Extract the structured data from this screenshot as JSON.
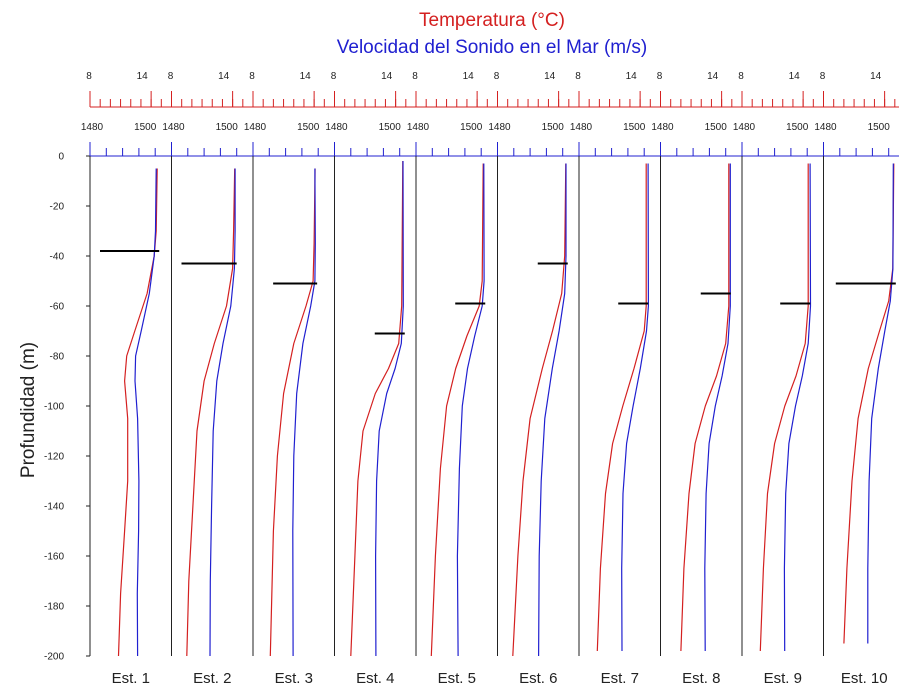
{
  "chart_data": {
    "type": "line",
    "title": "Temperatura (°C)",
    "subtitle": "Velocidad del Sonido en el Mar (m/s)",
    "ylabel": "Profundidad (m)",
    "ylim": [
      -200,
      0
    ],
    "yticks": [
      0,
      -20,
      -40,
      -60,
      -80,
      -100,
      -120,
      -140,
      -160,
      -180,
      -200
    ],
    "temp_axis": {
      "range": [
        8,
        16
      ],
      "tick_labels": [
        8,
        14
      ]
    },
    "vel_axis": {
      "range": [
        1480,
        1505
      ],
      "tick_labels": [
        1480,
        1500
      ]
    },
    "colors": {
      "temperature": "#d42020",
      "velocity": "#2020d0",
      "mixed_layer": "#000000",
      "axis": "#222222"
    },
    "stations": [
      {
        "name": "Est. 1",
        "mixed_layer_depth": -38,
        "temperature": [
          [
            -5,
            14.6
          ],
          [
            -30,
            14.5
          ],
          [
            -40,
            14.3
          ],
          [
            -55,
            13.6
          ],
          [
            -70,
            12.4
          ],
          [
            -80,
            11.6
          ],
          [
            -90,
            11.4
          ],
          [
            -105,
            11.7
          ],
          [
            -130,
            11.7
          ],
          [
            -150,
            11.4
          ],
          [
            -175,
            11.0
          ],
          [
            -200,
            10.8
          ]
        ],
        "velocity": [
          [
            -5,
            1500.3
          ],
          [
            -30,
            1500.1
          ],
          [
            -40,
            1499.7
          ],
          [
            -55,
            1498.2
          ],
          [
            -70,
            1495.7
          ],
          [
            -80,
            1494.0
          ],
          [
            -90,
            1493.8
          ],
          [
            -105,
            1494.6
          ],
          [
            -130,
            1495.0
          ],
          [
            -150,
            1494.9
          ],
          [
            -175,
            1494.5
          ],
          [
            -200,
            1494.6
          ]
        ]
      },
      {
        "name": "Est. 2",
        "mixed_layer_depth": -43,
        "temperature": [
          [
            -5,
            14.2
          ],
          [
            -30,
            14.1
          ],
          [
            -45,
            14.0
          ],
          [
            -60,
            13.4
          ],
          [
            -75,
            12.2
          ],
          [
            -90,
            11.2
          ],
          [
            -110,
            10.5
          ],
          [
            -140,
            10.1
          ],
          [
            -170,
            9.7
          ],
          [
            -200,
            9.5
          ]
        ],
        "velocity": [
          [
            -5,
            1499.5
          ],
          [
            -30,
            1499.5
          ],
          [
            -45,
            1499.3
          ],
          [
            -60,
            1498.2
          ],
          [
            -75,
            1495.8
          ],
          [
            -90,
            1493.9
          ],
          [
            -110,
            1492.8
          ],
          [
            -140,
            1492.3
          ],
          [
            -170,
            1491.9
          ],
          [
            -200,
            1491.8
          ]
        ]
      },
      {
        "name": "Est. 3",
        "mixed_layer_depth": -51,
        "temperature": [
          [
            -5,
            14.1
          ],
          [
            -35,
            14.0
          ],
          [
            -50,
            13.9
          ],
          [
            -60,
            13.2
          ],
          [
            -75,
            12.0
          ],
          [
            -95,
            11.0
          ],
          [
            -120,
            10.4
          ],
          [
            -150,
            10.0
          ],
          [
            -200,
            9.7
          ]
        ],
        "velocity": [
          [
            -5,
            1499.0
          ],
          [
            -35,
            1499.1
          ],
          [
            -50,
            1499.0
          ],
          [
            -60,
            1497.7
          ],
          [
            -75,
            1495.3
          ],
          [
            -95,
            1493.4
          ],
          [
            -120,
            1492.5
          ],
          [
            -150,
            1492.2
          ],
          [
            -200,
            1492.3
          ]
        ]
      },
      {
        "name": "Est. 4",
        "mixed_layer_depth": -71,
        "temperature": [
          [
            -2,
            14.7
          ],
          [
            -60,
            14.6
          ],
          [
            -75,
            14.3
          ],
          [
            -85,
            13.3
          ],
          [
            -95,
            12.0
          ],
          [
            -110,
            10.8
          ],
          [
            -130,
            10.3
          ],
          [
            -160,
            10.0
          ],
          [
            -200,
            9.6
          ]
        ],
        "velocity": [
          [
            -2,
            1501.0
          ],
          [
            -60,
            1501.1
          ],
          [
            -75,
            1500.5
          ],
          [
            -85,
            1498.6
          ],
          [
            -95,
            1496.0
          ],
          [
            -110,
            1493.7
          ],
          [
            -130,
            1492.9
          ],
          [
            -160,
            1492.6
          ],
          [
            -200,
            1492.7
          ]
        ]
      },
      {
        "name": "Est. 5",
        "mixed_layer_depth": -59,
        "temperature": [
          [
            -3,
            14.6
          ],
          [
            -50,
            14.5
          ],
          [
            -60,
            14.2
          ],
          [
            -72,
            13.0
          ],
          [
            -85,
            11.9
          ],
          [
            -100,
            11.0
          ],
          [
            -125,
            10.4
          ],
          [
            -160,
            9.9
          ],
          [
            -200,
            9.5
          ]
        ],
        "velocity": [
          [
            -3,
            1500.8
          ],
          [
            -50,
            1500.9
          ],
          [
            -60,
            1500.3
          ],
          [
            -72,
            1498.0
          ],
          [
            -85,
            1495.8
          ],
          [
            -100,
            1494.2
          ],
          [
            -125,
            1493.3
          ],
          [
            -160,
            1492.7
          ],
          [
            -200,
            1492.9
          ]
        ]
      },
      {
        "name": "Est. 6",
        "mixed_layer_depth": -43,
        "temperature": [
          [
            -3,
            14.7
          ],
          [
            -40,
            14.6
          ],
          [
            -55,
            14.3
          ],
          [
            -70,
            13.4
          ],
          [
            -85,
            12.4
          ],
          [
            -105,
            11.2
          ],
          [
            -130,
            10.5
          ],
          [
            -160,
            10.0
          ],
          [
            -200,
            9.5
          ]
        ],
        "velocity": [
          [
            -3,
            1501.0
          ],
          [
            -40,
            1501.0
          ],
          [
            -55,
            1500.6
          ],
          [
            -70,
            1498.9
          ],
          [
            -85,
            1496.8
          ],
          [
            -105,
            1494.5
          ],
          [
            -130,
            1493.4
          ],
          [
            -160,
            1492.8
          ],
          [
            -200,
            1492.6
          ]
        ]
      },
      {
        "name": "Est. 7",
        "mixed_layer_depth": -59,
        "temperature": [
          [
            -3,
            14.6
          ],
          [
            -60,
            14.6
          ],
          [
            -70,
            14.4
          ],
          [
            -85,
            13.4
          ],
          [
            -100,
            12.3
          ],
          [
            -115,
            11.3
          ],
          [
            -135,
            10.6
          ],
          [
            -165,
            10.1
          ],
          [
            -198,
            9.8
          ]
        ],
        "velocity": [
          [
            -3,
            1501.2
          ],
          [
            -60,
            1501.3
          ],
          [
            -70,
            1500.7
          ],
          [
            -85,
            1498.8
          ],
          [
            -100,
            1496.6
          ],
          [
            -115,
            1494.6
          ],
          [
            -135,
            1493.5
          ],
          [
            -165,
            1493.1
          ],
          [
            -198,
            1493.2
          ]
        ]
      },
      {
        "name": "Est. 8",
        "mixed_layer_depth": -55,
        "temperature": [
          [
            -3,
            14.7
          ],
          [
            -60,
            14.7
          ],
          [
            -75,
            14.4
          ],
          [
            -88,
            13.5
          ],
          [
            -100,
            12.4
          ],
          [
            -115,
            11.4
          ],
          [
            -135,
            10.8
          ],
          [
            -165,
            10.3
          ],
          [
            -198,
            10.0
          ]
        ],
        "velocity": [
          [
            -3,
            1501.4
          ],
          [
            -60,
            1501.4
          ],
          [
            -75,
            1500.7
          ],
          [
            -88,
            1498.9
          ],
          [
            -100,
            1496.8
          ],
          [
            -115,
            1494.9
          ],
          [
            -135,
            1494.0
          ],
          [
            -165,
            1493.6
          ],
          [
            -198,
            1493.7
          ]
        ]
      },
      {
        "name": "Est. 9",
        "mixed_layer_depth": -59,
        "temperature": [
          [
            -3,
            14.5
          ],
          [
            -60,
            14.5
          ],
          [
            -75,
            14.2
          ],
          [
            -88,
            13.3
          ],
          [
            -100,
            12.2
          ],
          [
            -115,
            11.2
          ],
          [
            -135,
            10.5
          ],
          [
            -165,
            10.1
          ],
          [
            -198,
            9.8
          ]
        ],
        "velocity": [
          [
            -3,
            1500.9
          ],
          [
            -60,
            1501.0
          ],
          [
            -75,
            1500.3
          ],
          [
            -88,
            1498.5
          ],
          [
            -100,
            1496.4
          ],
          [
            -115,
            1494.4
          ],
          [
            -135,
            1493.4
          ],
          [
            -165,
            1493.0
          ],
          [
            -198,
            1493.1
          ]
        ]
      },
      {
        "name": "Est. 10",
        "mixed_layer_depth": -51,
        "temperature": [
          [
            -3,
            14.9
          ],
          [
            -45,
            14.8
          ],
          [
            -58,
            14.4
          ],
          [
            -70,
            13.5
          ],
          [
            -85,
            12.4
          ],
          [
            -105,
            11.4
          ],
          [
            -130,
            10.8
          ],
          [
            -165,
            10.3
          ],
          [
            -195,
            10.0
          ]
        ],
        "velocity": [
          [
            -3,
            1501.4
          ],
          [
            -45,
            1501.3
          ],
          [
            -58,
            1500.5
          ],
          [
            -70,
            1498.8
          ],
          [
            -85,
            1496.8
          ],
          [
            -105,
            1494.8
          ],
          [
            -130,
            1494.0
          ],
          [
            -165,
            1493.6
          ],
          [
            -195,
            1493.6
          ]
        ]
      }
    ]
  }
}
